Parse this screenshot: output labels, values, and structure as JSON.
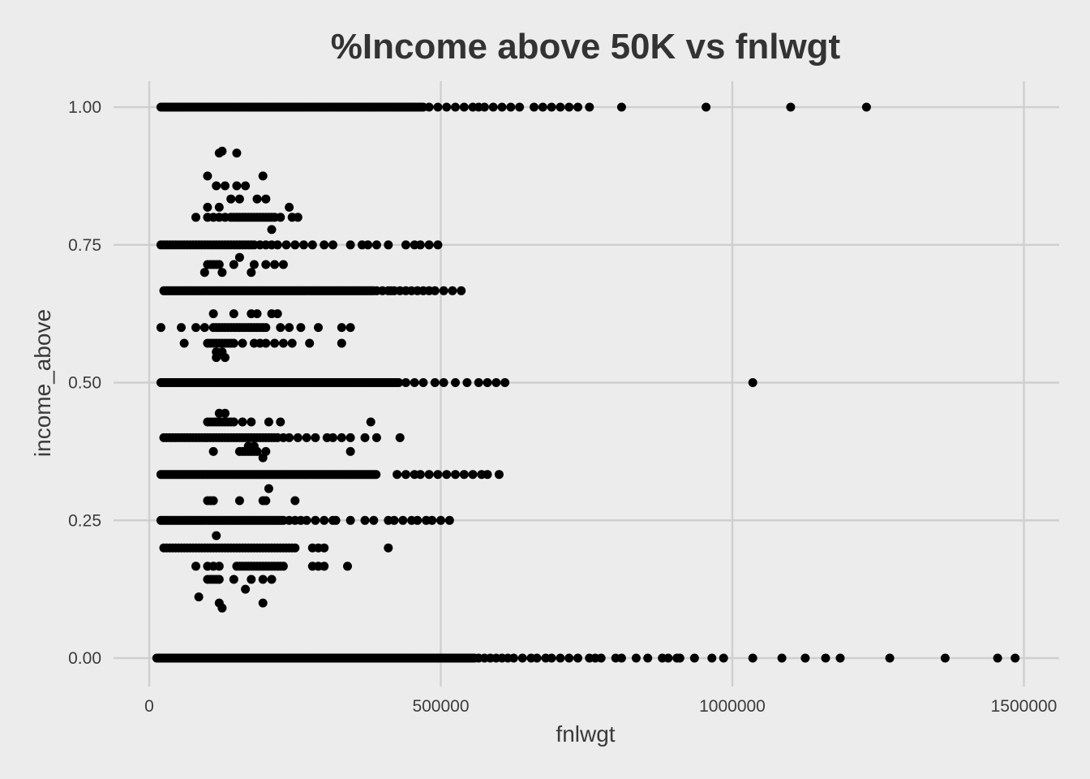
{
  "chart_data": {
    "type": "scatter",
    "title": "%Income above 50K vs fnlwgt",
    "xlabel": "fnlwgt",
    "ylabel": "income_above",
    "xlim": [
      0,
      1500000
    ],
    "ylim": [
      0,
      1
    ],
    "x_ticks": [
      {
        "value": 0,
        "label": "0"
      },
      {
        "value": 500000,
        "label": "500000"
      },
      {
        "value": 1000000,
        "label": "1000000"
      },
      {
        "value": 1500000,
        "label": "1500000"
      }
    ],
    "y_ticks": [
      {
        "value": 0,
        "label": "0.00"
      },
      {
        "value": 0.25,
        "label": "0.25"
      },
      {
        "value": 0.5,
        "label": "0.50"
      },
      {
        "value": 0.75,
        "label": "0.75"
      },
      {
        "value": 1,
        "label": "1.00"
      }
    ],
    "grid": true,
    "point_color": "#000000",
    "bands": [
      {
        "y": 0.0,
        "x_from": 13000,
        "x_to": 560000,
        "dense_step": 2500,
        "sparse": [
          565000,
          575000,
          585000,
          595000,
          605000,
          615000,
          625000,
          640000,
          655000,
          665000,
          680000,
          690000,
          705000,
          720000,
          735000,
          755000,
          765000,
          775000,
          800000,
          810000,
          835000,
          855000,
          880000,
          890000,
          905000,
          910000,
          935000,
          965000,
          985000,
          1035000,
          1085000,
          1125000,
          1160000,
          1185000,
          1270000,
          1365000,
          1455000,
          1485000
        ]
      },
      {
        "y": 1.0,
        "x_from": 20000,
        "x_to": 470000,
        "dense_step": 2500,
        "sparse": [
          480000,
          495000,
          510000,
          525000,
          540000,
          555000,
          565000,
          575000,
          590000,
          605000,
          620000,
          635000,
          660000,
          675000,
          690000,
          705000,
          720000,
          735000,
          755000,
          810000,
          955000,
          1100000,
          1230000
        ]
      },
      {
        "y": 0.5,
        "x_from": 20000,
        "x_to": 430000,
        "dense_step": 3000,
        "sparse": [
          440000,
          455000,
          470000,
          490000,
          505000,
          525000,
          545000,
          565000,
          580000,
          595000,
          610000,
          1035000
        ]
      },
      {
        "y": 0.3333,
        "x_from": 20000,
        "x_to": 390000,
        "dense_step": 3000,
        "sparse": [
          425000,
          440000,
          455000,
          465000,
          480000,
          495000,
          510000,
          525000,
          540000,
          555000,
          570000,
          580000,
          600000
        ]
      },
      {
        "y": 0.6667,
        "x_from": 25000,
        "x_to": 385000,
        "dense_step": 3000,
        "sparse": [
          390000,
          400000,
          410000,
          415000,
          420000,
          430000,
          440000,
          450000,
          460000,
          470000,
          480000,
          490000,
          505000,
          520000,
          535000
        ]
      },
      {
        "y": 0.25,
        "x_from": 20000,
        "x_to": 230000,
        "dense_step": 3500,
        "sparse": [
          240000,
          250000,
          260000,
          270000,
          285000,
          300000,
          315000,
          320000,
          345000,
          370000,
          385000,
          410000,
          420000,
          435000,
          450000,
          460000,
          475000,
          485000,
          500000,
          515000
        ]
      },
      {
        "y": 0.75,
        "x_from": 20000,
        "x_to": 180000,
        "dense_step": 5000,
        "sparse": [
          190000,
          200000,
          210000,
          220000,
          235000,
          250000,
          265000,
          280000,
          300000,
          315000,
          345000,
          365000,
          375000,
          390000,
          410000,
          440000,
          455000,
          465000,
          480000,
          495000
        ]
      },
      {
        "y": 0.4,
        "x_from": 25000,
        "x_to": 220000,
        "dense_step": 5000,
        "sparse": [
          230000,
          240000,
          255000,
          270000,
          285000,
          305000,
          315000,
          330000,
          345000,
          370000,
          390000,
          430000
        ]
      },
      {
        "y": 0.6,
        "x_from": 110000,
        "x_to": 200000,
        "dense_step": 5000,
        "sparse": [
          20000,
          55000,
          80000,
          95000,
          225000,
          240000,
          260000,
          290000,
          330000,
          345000
        ]
      },
      {
        "y": 0.2,
        "x_from": 25000,
        "x_to": 250000,
        "dense_step": 5000,
        "sparse": [
          280000,
          290000,
          300000,
          410000
        ]
      },
      {
        "y": 0.8,
        "x_from": 140000,
        "x_to": 215000,
        "dense_step": 5000,
        "sparse": [
          80000,
          100000,
          110000,
          120000,
          130000,
          225000,
          245000,
          255000
        ]
      },
      {
        "y": 0.5714,
        "x_from": 100000,
        "x_to": 145000,
        "dense_step": 5000,
        "sparse": [
          60000,
          160000,
          180000,
          190000,
          200000,
          215000,
          230000,
          245000,
          275000,
          330000
        ]
      },
      {
        "y": 0.4286,
        "x_from": 100000,
        "x_to": 145000,
        "dense_step": 5000,
        "sparse": [
          160000,
          175000,
          205000,
          225000,
          380000
        ]
      },
      {
        "y": 0.1667,
        "x_from": 150000,
        "x_to": 230000,
        "dense_step": 5000,
        "sparse": [
          80000,
          100000,
          110000,
          120000,
          280000,
          290000,
          300000,
          340000
        ]
      },
      {
        "y": 0.7143,
        "x_from": 100000,
        "x_to": 120000,
        "dense_step": 5000,
        "sparse": [
          145000,
          180000,
          200000,
          215000,
          230000
        ]
      },
      {
        "y": 0.2857,
        "x_from": 100000,
        "x_to": 110000,
        "dense_step": 5000,
        "sparse": [
          155000,
          195000,
          200000,
          250000
        ]
      },
      {
        "y": 0.375,
        "x_from": 155000,
        "x_to": 185000,
        "dense_step": 5000,
        "sparse": [
          110000,
          200000,
          345000
        ]
      },
      {
        "y": 0.1429,
        "x_from": 100000,
        "x_to": 120000,
        "dense_step": 5000,
        "sparse": [
          145000,
          175000,
          195000,
          210000
        ]
      }
    ],
    "points": [
      {
        "x": 125000,
        "y": 0.92
      },
      {
        "x": 120000,
        "y": 0.9167
      },
      {
        "x": 150000,
        "y": 0.9167
      },
      {
        "x": 100000,
        "y": 0.875
      },
      {
        "x": 195000,
        "y": 0.875
      },
      {
        "x": 115000,
        "y": 0.8571
      },
      {
        "x": 130000,
        "y": 0.8571
      },
      {
        "x": 150000,
        "y": 0.8571
      },
      {
        "x": 165000,
        "y": 0.8571
      },
      {
        "x": 140000,
        "y": 0.8333
      },
      {
        "x": 155000,
        "y": 0.8333
      },
      {
        "x": 185000,
        "y": 0.8333
      },
      {
        "x": 200000,
        "y": 0.8333
      },
      {
        "x": 100000,
        "y": 0.8182
      },
      {
        "x": 120000,
        "y": 0.8182
      },
      {
        "x": 240000,
        "y": 0.8182
      },
      {
        "x": 210000,
        "y": 0.7778
      },
      {
        "x": 155000,
        "y": 0.7273
      },
      {
        "x": 95000,
        "y": 0.7
      },
      {
        "x": 125000,
        "y": 0.7
      },
      {
        "x": 175000,
        "y": 0.7
      },
      {
        "x": 110000,
        "y": 0.625
      },
      {
        "x": 145000,
        "y": 0.625
      },
      {
        "x": 175000,
        "y": 0.625
      },
      {
        "x": 185000,
        "y": 0.625
      },
      {
        "x": 210000,
        "y": 0.625
      },
      {
        "x": 220000,
        "y": 0.625
      },
      {
        "x": 115000,
        "y": 0.5556
      },
      {
        "x": 125000,
        "y": 0.5556
      },
      {
        "x": 115000,
        "y": 0.5455
      },
      {
        "x": 130000,
        "y": 0.5455
      },
      {
        "x": 120000,
        "y": 0.4444
      },
      {
        "x": 130000,
        "y": 0.4444
      },
      {
        "x": 180000,
        "y": 0.3846
      },
      {
        "x": 195000,
        "y": 0.3636
      },
      {
        "x": 170000,
        "y": 0.3846
      },
      {
        "x": 205000,
        "y": 0.3077
      },
      {
        "x": 115000,
        "y": 0.2222
      },
      {
        "x": 165000,
        "y": 0.125
      },
      {
        "x": 85000,
        "y": 0.1111
      },
      {
        "x": 120000,
        "y": 0.1
      },
      {
        "x": 195000,
        "y": 0.1
      },
      {
        "x": 125000,
        "y": 0.0909
      }
    ]
  }
}
